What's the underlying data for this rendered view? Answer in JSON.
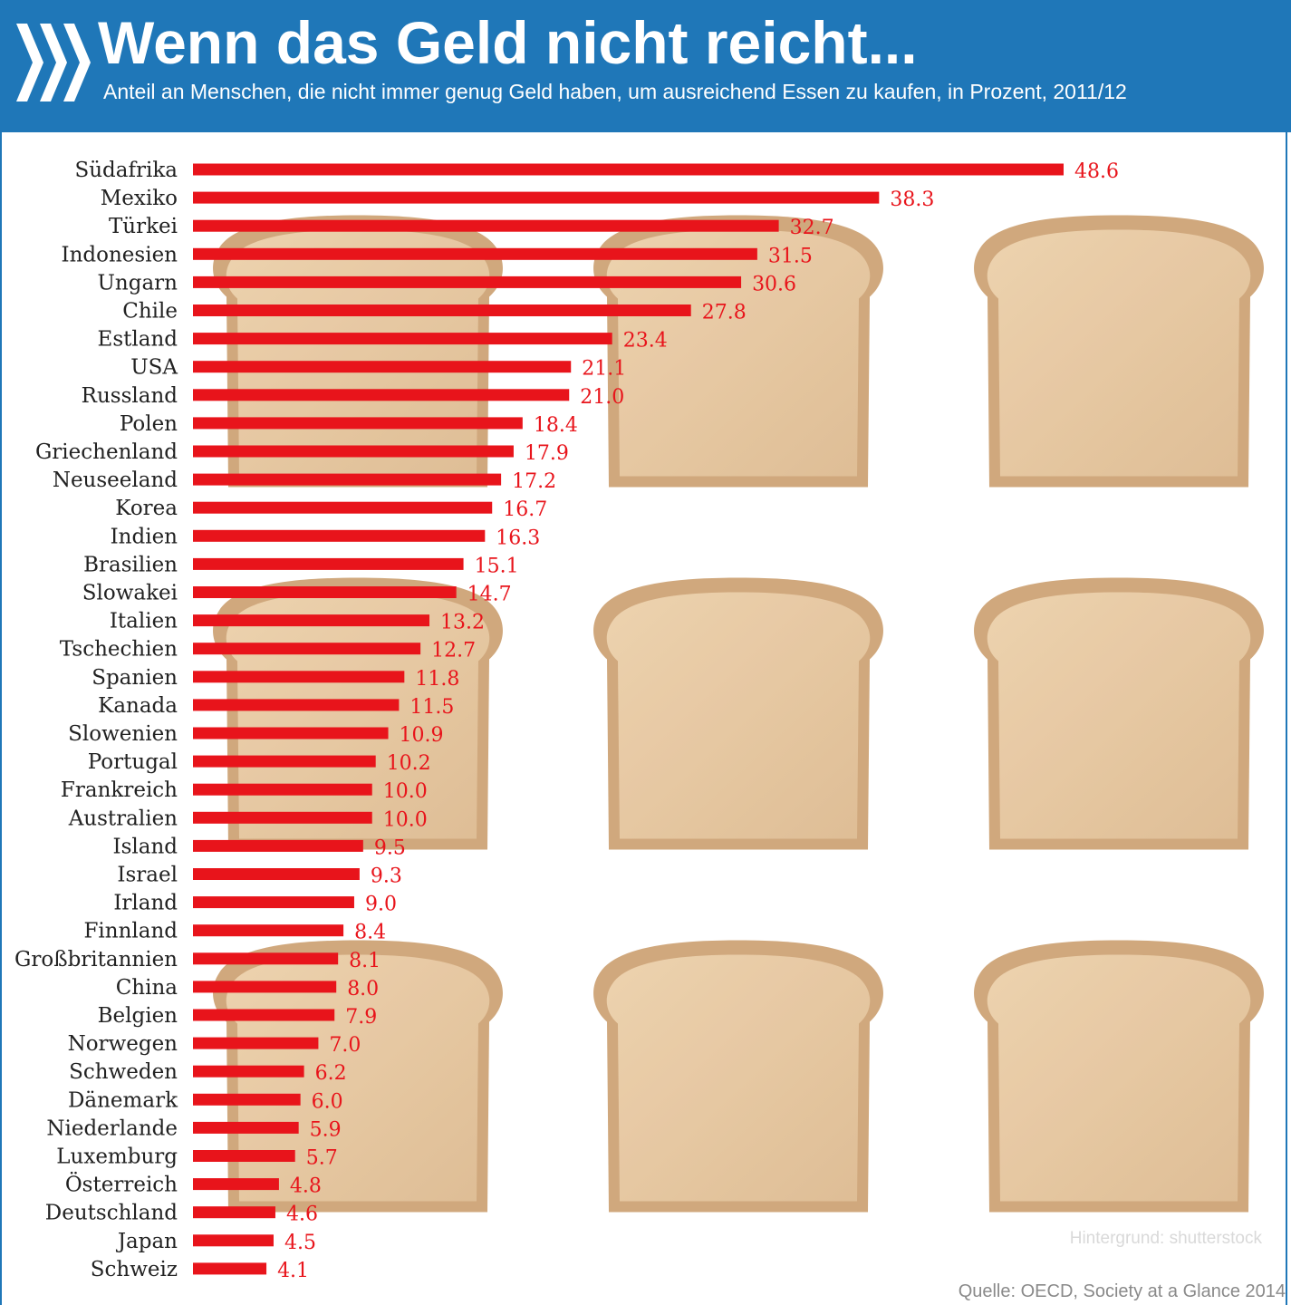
{
  "header": {
    "title": "Wenn das Geld nicht reicht...",
    "subtitle": "Anteil an Menschen, die nicht immer genug Geld haben, um ausreichend Essen zu kaufen, in Prozent, 2011/12"
  },
  "colors": {
    "header_bg": "#1f77b8",
    "bar": "#e8141b",
    "toast": "#e2c29a",
    "toast_crust": "#c99c6a"
  },
  "icons": {
    "logo": "oecd-chevrons-logo",
    "background": "toast-slice-images"
  },
  "chart_data": {
    "type": "bar",
    "orientation": "horizontal",
    "title": "Wenn das Geld nicht reicht...",
    "subtitle": "Anteil an Menschen, die nicht immer genug Geld haben, um ausreichend Essen zu kaufen, in Prozent, 2011/12",
    "categories": [
      "Südafrika",
      "Mexiko",
      "Türkei",
      "Indonesien",
      "Ungarn",
      "Chile",
      "Estland",
      "USA",
      "Russland",
      "Polen",
      "Griechenland",
      "Neuseeland",
      "Korea",
      "Indien",
      "Brasilien",
      "Slowakei",
      "Italien",
      "Tschechien",
      "Spanien",
      "Kanada",
      "Slowenien",
      "Portugal",
      "Frankreich",
      "Australien",
      "Island",
      "Israel",
      "Irland",
      "Finnland",
      "Großbritannien",
      "China",
      "Belgien",
      "Norwegen",
      "Schweden",
      "Dänemark",
      "Niederlande",
      "Luxemburg",
      "Österreich",
      "Deutschland",
      "Japan",
      "Schweiz"
    ],
    "values": [
      48.6,
      38.3,
      32.7,
      31.5,
      30.6,
      27.8,
      23.4,
      21.1,
      21.0,
      18.4,
      17.9,
      17.2,
      16.7,
      16.3,
      15.1,
      14.7,
      13.2,
      12.7,
      11.8,
      11.5,
      10.9,
      10.2,
      10.0,
      10.0,
      9.5,
      9.3,
      9.0,
      8.4,
      8.1,
      8.0,
      7.9,
      7.0,
      6.2,
      6.0,
      5.9,
      5.7,
      4.8,
      4.6,
      4.5,
      4.1
    ],
    "value_labels": [
      "48.6",
      "38.3",
      "32.7",
      "31.5",
      "30.6",
      "27.8",
      "23.4",
      "21.1",
      "21.0",
      "18.4",
      "17.9",
      "17.2",
      "16.7",
      "16.3",
      "15.1",
      "14.7",
      "13.2",
      "12.7",
      "11.8",
      "11.5",
      "10.9",
      "10.2",
      "10.0",
      "10.0",
      "9.5",
      "9.3",
      "9.0",
      "8.4",
      "8.1",
      "8.0",
      "7.9",
      "7.0",
      "6.2",
      "6.0",
      "5.9",
      "5.7",
      "4.8",
      "4.6",
      "4.5",
      "4.1"
    ],
    "xlim": [
      0,
      48.6
    ],
    "grid": false,
    "legend": "none",
    "bar_color": "#e8141b"
  },
  "footer": {
    "credit": "Hintergrund: shutterstock",
    "source": "Quelle: OECD, Society at a Glance 2014"
  }
}
